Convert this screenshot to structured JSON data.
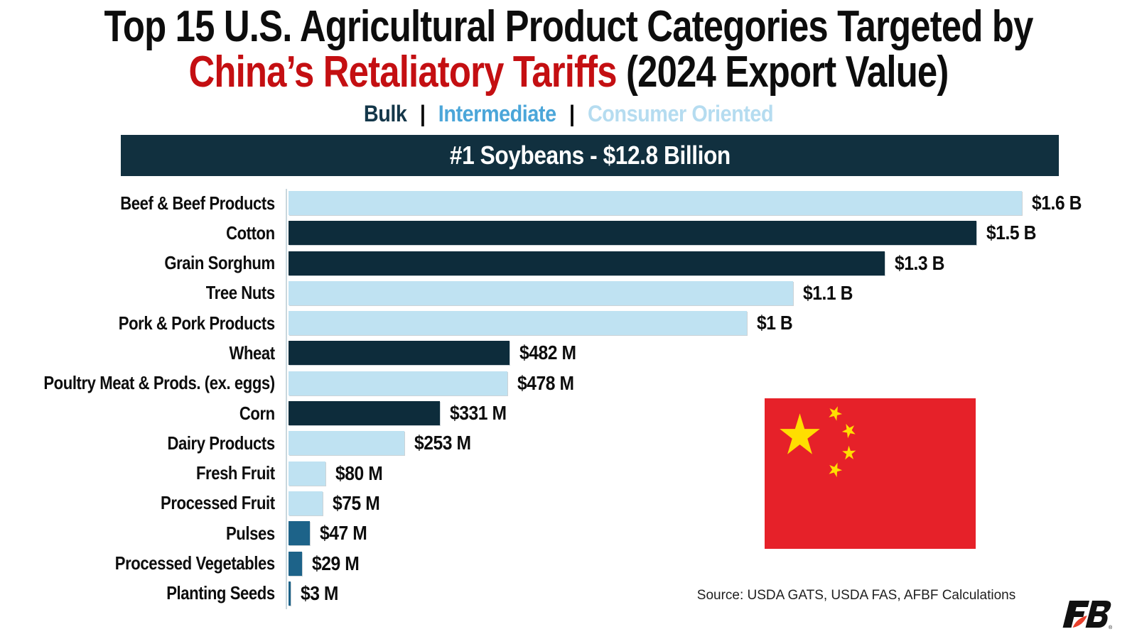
{
  "title": {
    "line1": "Top 15 U.S. Agricultural Product Categories Targeted by",
    "line2_red": "China’s Retaliatory Tariffs",
    "line2_black": " (2024 Export Value)"
  },
  "legend": {
    "separator": "|",
    "items": [
      {
        "label": "Bulk",
        "color": "#14374a"
      },
      {
        "label": "Intermediate",
        "color": "#4ba6d9"
      },
      {
        "label": "Consumer Oriented",
        "color": "#b5dcf0"
      }
    ]
  },
  "banner": {
    "text": "#1 Soybeans - $12.8 Billion",
    "value_musd": 12800,
    "bg": "#11303f"
  },
  "chart_data": {
    "type": "bar",
    "orientation": "horizontal",
    "title": "Top 15 U.S. Agricultural Product Categories Targeted by China’s Retaliatory Tariffs (2024 Export Value)",
    "unit": "USD millions",
    "x_max_musd": 1600,
    "grid": false,
    "legend_position": "top",
    "top_category_in_banner": {
      "label": "Soybeans",
      "value_musd": 12800,
      "value_label": "$12.8 Billion",
      "rank": 1
    },
    "categories": [
      "Beef & Beef Products",
      "Cotton",
      "Grain Sorghum",
      "Tree Nuts",
      "Pork & Pork Products",
      "Wheat",
      "Poultry Meat & Prods. (ex. eggs)",
      "Corn",
      "Dairy Products",
      "Fresh Fruit",
      "Processed Fruit",
      "Pulses",
      "Processed Vegetables",
      "Planting Seeds"
    ],
    "values_musd": [
      1600,
      1500,
      1300,
      1100,
      1000,
      482,
      478,
      331,
      253,
      80,
      75,
      47,
      29,
      3
    ],
    "value_labels": [
      "$1.6 B",
      "$1.5 B",
      "$1.3 B",
      "$1.1 B",
      "$1 B",
      "$482 M",
      "$478 M",
      "$331 M",
      "$253 M",
      "$80 M",
      "$75 M",
      "$47 M",
      "$29 M",
      "$3 M"
    ],
    "segments": [
      "consumer",
      "bulk",
      "bulk",
      "consumer",
      "consumer",
      "bulk",
      "consumer",
      "bulk",
      "consumer",
      "consumer",
      "consumer",
      "intermediate",
      "intermediate",
      "intermediate"
    ],
    "colors": {
      "bulk": "#0d2c3b",
      "intermediate": "#1d6389",
      "consumer": "#bfe2f2"
    }
  },
  "flag": {
    "name": "flag-of-china",
    "red": "#e62129",
    "yellow": "#ffde00"
  },
  "footer": {
    "source": "Source: USDA GATS, USDA FAS, AFBF Calculations",
    "logo_mark": "®"
  }
}
